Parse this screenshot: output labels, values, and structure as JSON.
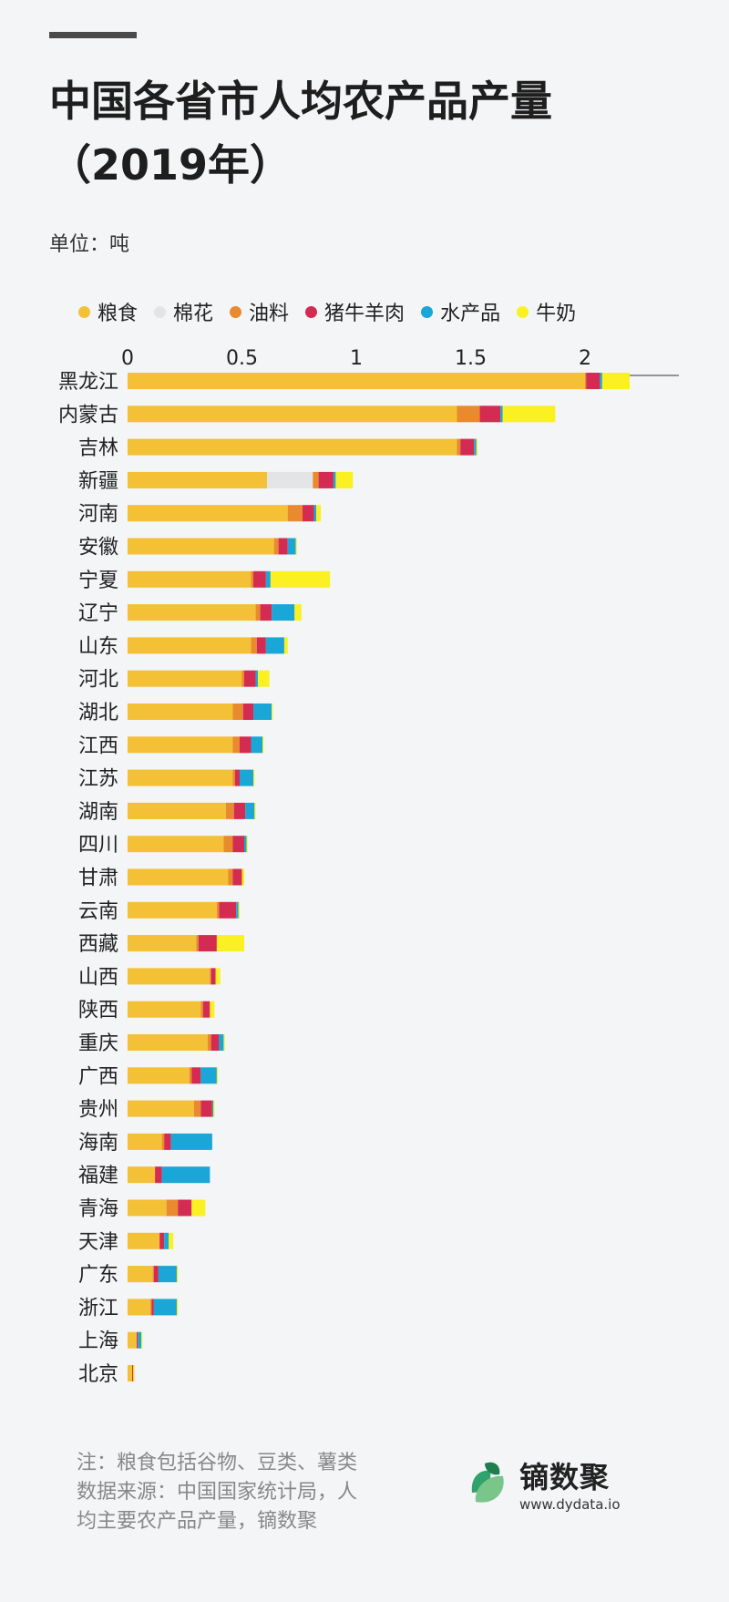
{
  "title": "中国各省市人均农产品产量（2019年）",
  "unit_label": "单位：吨",
  "notes": [
    "注：粮食包括谷物、豆类、薯类",
    "数据来源：中国国家统计局，人",
    "均主要农产品产量，镝数聚"
  ],
  "brand": {
    "name": "镝数聚",
    "url": "www.dydata.io"
  },
  "colors": {
    "粮食": "#f3c036",
    "棉花": "#e2e4e6",
    "油料": "#e98a2e",
    "猪牛羊肉": "#d42b52",
    "水产品": "#1aa6d6",
    "牛奶": "#fbf022"
  },
  "chart_data": {
    "type": "bar",
    "orientation": "horizontal",
    "stacked": true,
    "title": "中国各省市人均农产品产量（2019年）",
    "unit": "单位：吨",
    "x_ticks": [
      "0",
      "0.5",
      "1",
      "1.5",
      "2"
    ],
    "xlim": [
      0,
      2.4
    ],
    "legend_position": "top",
    "categories": [
      "黑龙江",
      "内蒙古",
      "吉林",
      "新疆",
      "河南",
      "安徽",
      "宁夏",
      "辽宁",
      "山东",
      "河北",
      "湖北",
      "江西",
      "江苏",
      "湖南",
      "四川",
      "甘肃",
      "云南",
      "西藏",
      "山西",
      "陕西",
      "重庆",
      "广西",
      "贵州",
      "海南",
      "福建",
      "青海",
      "天津",
      "广东",
      "浙江",
      "上海",
      "北京"
    ],
    "series": [
      {
        "name": "粮食",
        "values": [
          2.0,
          1.44,
          1.44,
          0.61,
          0.7,
          0.64,
          0.54,
          0.56,
          0.54,
          0.5,
          0.46,
          0.46,
          0.46,
          0.43,
          0.42,
          0.44,
          0.39,
          0.3,
          0.36,
          0.32,
          0.35,
          0.27,
          0.29,
          0.15,
          0.12,
          0.17,
          0.14,
          0.11,
          0.1,
          0.04,
          0.02
        ]
      },
      {
        "name": "棉花",
        "values": [
          0,
          0,
          0,
          0.2,
          0,
          0,
          0,
          0,
          0,
          0,
          0,
          0,
          0,
          0,
          0,
          0,
          0,
          0,
          0,
          0,
          0,
          0,
          0,
          0,
          0,
          0,
          0,
          0,
          0,
          0,
          0
        ]
      },
      {
        "name": "油料",
        "values": [
          0.005,
          0.1,
          0.015,
          0.025,
          0.065,
          0.02,
          0.01,
          0.02,
          0.025,
          0.01,
          0.045,
          0.03,
          0.01,
          0.035,
          0.04,
          0.02,
          0.01,
          0.01,
          0.005,
          0.01,
          0.015,
          0.01,
          0.03,
          0.01,
          0,
          0.05,
          0,
          0.005,
          0.005,
          0,
          0
        ]
      },
      {
        "name": "猪牛羊肉",
        "values": [
          0.06,
          0.09,
          0.06,
          0.065,
          0.05,
          0.04,
          0.055,
          0.05,
          0.04,
          0.05,
          0.045,
          0.05,
          0.02,
          0.05,
          0.05,
          0.04,
          0.075,
          0.08,
          0.02,
          0.03,
          0.035,
          0.04,
          0.05,
          0.03,
          0.03,
          0.06,
          0.02,
          0.02,
          0.01,
          0.005,
          0.005
        ]
      },
      {
        "name": "水产品",
        "values": [
          0.01,
          0.01,
          0.01,
          0.01,
          0.01,
          0.035,
          0.02,
          0.1,
          0.08,
          0.01,
          0.08,
          0.05,
          0.06,
          0.04,
          0.01,
          0,
          0.01,
          0,
          0,
          0,
          0.02,
          0.07,
          0.005,
          0.18,
          0.21,
          0,
          0.02,
          0.08,
          0.1,
          0.015,
          0
        ]
      },
      {
        "name": "牛奶",
        "values": [
          0.12,
          0.23,
          0.005,
          0.075,
          0.02,
          0.005,
          0.26,
          0.03,
          0.015,
          0.05,
          0.005,
          0.005,
          0.005,
          0.005,
          0.005,
          0.01,
          0.005,
          0.12,
          0.02,
          0.02,
          0.005,
          0.005,
          0.005,
          0,
          0,
          0.06,
          0.02,
          0.005,
          0.005,
          0.005,
          0.005
        ]
      }
    ]
  }
}
